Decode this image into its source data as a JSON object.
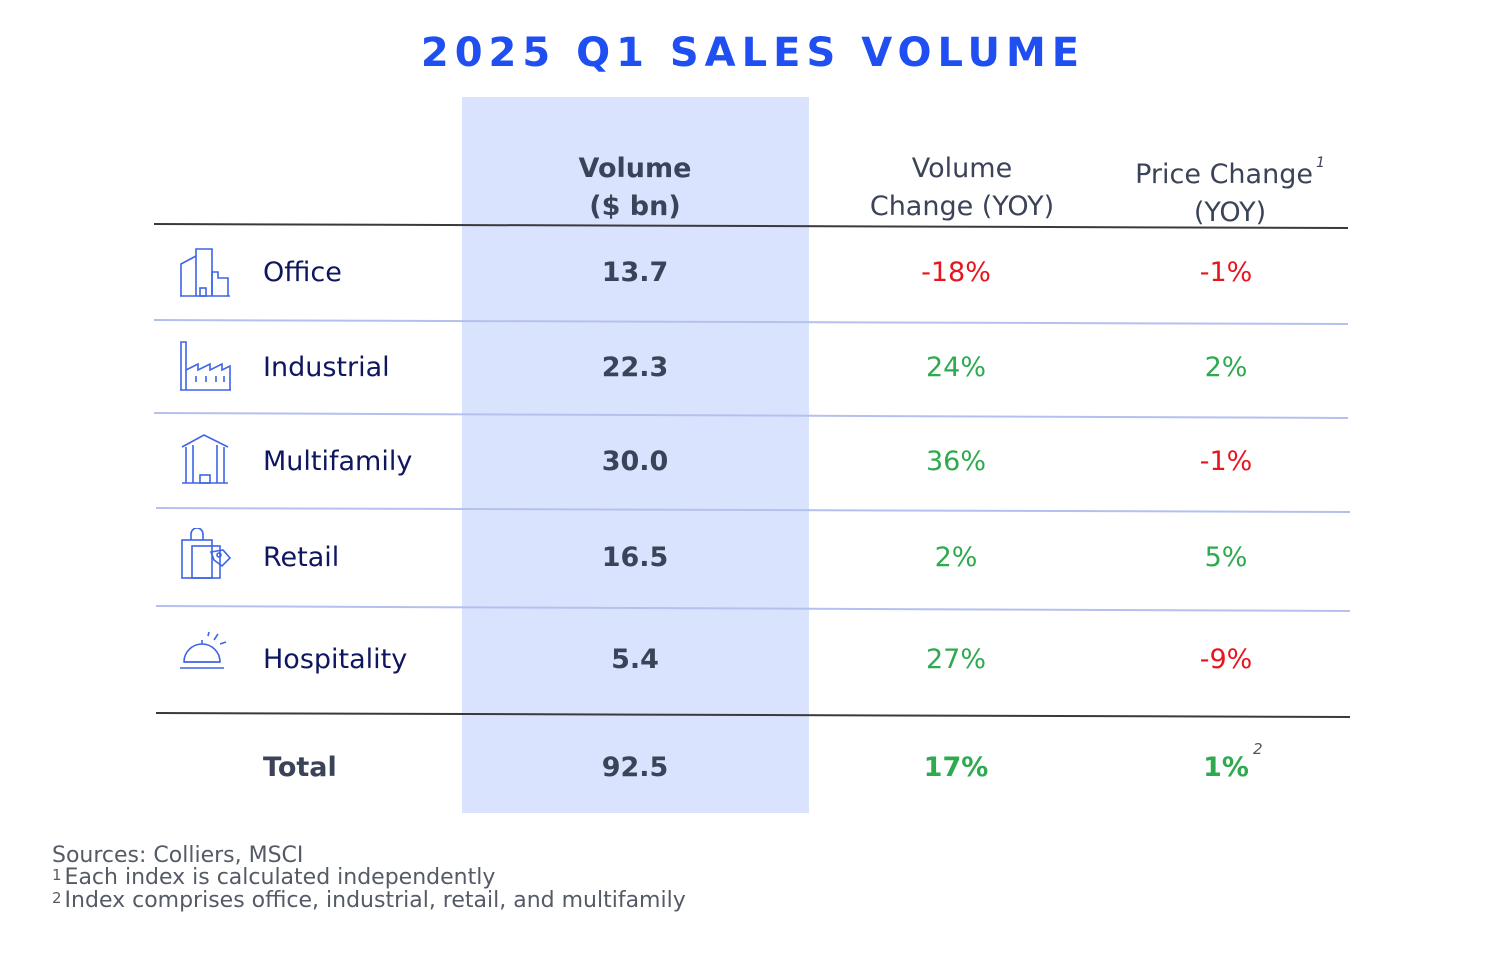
{
  "title": "2025 Q1 SALES VOLUME",
  "colors": {
    "accent": "#1f4ff0",
    "highlight": "#dae3fd",
    "positive": "#2eaa4f",
    "negative": "#e8141e",
    "label": "#0f1660"
  },
  "headers": {
    "volume_line1": "Volume",
    "volume_line2": "($ bn)",
    "vchange_line1": "Volume",
    "vchange_line2": "Change (YOY)",
    "pchange_line1": "Price Change",
    "pchange_line2": "(YOY)",
    "pchange_note": "1"
  },
  "chart_data": {
    "type": "table",
    "title": "2025 Q1 SALES VOLUME",
    "columns": [
      "Volume ($ bn)",
      "Volume Change (YOY)",
      "Price Change (YOY)"
    ],
    "rows": [
      {
        "sector": "Office",
        "icon": "office-building-icon",
        "volume": "13.7",
        "volume_change": "-18%",
        "price_change": "-1%"
      },
      {
        "sector": "Industrial",
        "icon": "factory-icon",
        "volume": "22.3",
        "volume_change": "24%",
        "price_change": "2%"
      },
      {
        "sector": "Multifamily",
        "icon": "apartment-icon",
        "volume": "30.0",
        "volume_change": "36%",
        "price_change": "-1%"
      },
      {
        "sector": "Retail",
        "icon": "shopping-bag-icon",
        "volume": "16.5",
        "volume_change": "2%",
        "price_change": "5%"
      },
      {
        "sector": "Hospitality",
        "icon": "service-bell-icon",
        "volume": "5.4",
        "volume_change": "27%",
        "price_change": "-9%"
      }
    ],
    "total": {
      "label": "Total",
      "volume": "92.5",
      "volume_change": "17%",
      "price_change": "1%",
      "price_change_note": "2"
    }
  },
  "notes": {
    "sources": "Sources: Colliers, MSCI",
    "note1_mark": "1",
    "note1": "Each index is calculated independently",
    "note2_mark": "2",
    "note2": "Index comprises office, industrial, retail, and multifamily"
  }
}
